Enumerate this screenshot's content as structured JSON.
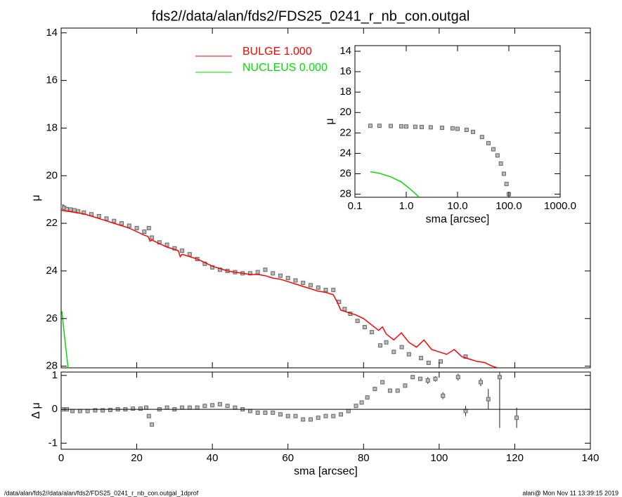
{
  "title": "fds2//data/alan/fds2/FDS25_0241_r_nb_con.outgal",
  "footer_left": "/data/alan/fds2//data/alan/fds2/FDS25_0241_r_nb_con.outgal_1dprof",
  "footer_right": "alan@  Mon Nov 11 13:39:15 2019",
  "chart_data": [
    {
      "type": "line",
      "ylabel": "μ",
      "xlim": [
        0,
        140
      ],
      "ylim": [
        28.07,
        13.8
      ],
      "yticks": [
        14,
        16,
        18,
        20,
        22,
        24,
        26,
        28
      ],
      "legend": "upper center",
      "series": [
        {
          "color": "#666666",
          "style": "points",
          "x": [
            0.3,
            0.8,
            1.5,
            2.5,
            3.5,
            4.5,
            6,
            8,
            10,
            12,
            14,
            16,
            18,
            20,
            22,
            23.2,
            24,
            26,
            28,
            30,
            32,
            34,
            36,
            38,
            40,
            42,
            44,
            46,
            48,
            50,
            52,
            54,
            56,
            58,
            60,
            62,
            64,
            66,
            68,
            70,
            72,
            73.5,
            75,
            76.5,
            78.4,
            80.3,
            82.2,
            84.4,
            86,
            88,
            90.1,
            92,
            95.2,
            97.2,
            100.4,
            107
          ],
          "values": [
            21.3,
            21.35,
            21.4,
            21.42,
            21.45,
            21.5,
            21.55,
            21.62,
            21.7,
            21.8,
            21.9,
            22.0,
            22.1,
            22.2,
            22.35,
            22.2,
            22.6,
            22.8,
            22.9,
            23.05,
            23.15,
            23.3,
            23.5,
            23.7,
            23.85,
            23.95,
            24.0,
            24.05,
            24.1,
            24.1,
            24.05,
            23.95,
            24.1,
            24.2,
            24.3,
            24.4,
            24.5,
            24.6,
            24.7,
            24.8,
            24.8,
            25.3,
            25.6,
            25.8,
            26.1,
            26.36,
            26.57,
            27.13,
            27.0,
            27.4,
            27.2,
            27.5,
            27.66,
            27.86,
            27.8,
            27.6
          ]
        },
        {
          "name": "BULGE  1.000",
          "color": "#ff0000",
          "style": "line",
          "x": [
            0,
            2,
            4,
            6,
            8,
            10,
            12,
            14,
            16,
            18,
            20,
            22,
            23,
            23.5,
            24,
            26,
            28,
            30,
            31,
            31.5,
            32,
            34,
            36,
            38,
            40,
            42,
            44,
            46,
            48,
            50,
            52,
            54,
            56,
            58,
            60,
            62,
            64,
            66,
            68,
            70,
            72,
            73,
            74,
            76,
            78,
            80,
            82,
            84,
            85,
            86,
            88,
            90,
            92,
            94,
            96,
            98,
            100,
            102,
            104,
            106,
            108,
            110,
            112,
            114,
            116
          ],
          "values": [
            21.45,
            21.5,
            21.55,
            21.6,
            21.7,
            21.8,
            21.9,
            22.0,
            22.1,
            22.2,
            22.35,
            22.5,
            22.55,
            22.75,
            22.7,
            22.85,
            23.0,
            23.1,
            23.15,
            23.4,
            23.3,
            23.4,
            23.5,
            23.65,
            23.8,
            23.9,
            24.0,
            24.05,
            24.1,
            24.15,
            24.15,
            24.2,
            24.3,
            24.35,
            24.45,
            24.55,
            24.65,
            24.75,
            24.85,
            24.9,
            25.0,
            25.3,
            25.65,
            25.75,
            25.85,
            26.0,
            26.25,
            26.5,
            26.35,
            26.65,
            26.9,
            26.6,
            27.0,
            27.2,
            26.9,
            27.3,
            27.4,
            27.5,
            27.3,
            27.6,
            27.7,
            27.8,
            27.85,
            28.0,
            28.1
          ]
        },
        {
          "name": "NUCLEUS  0.000",
          "color": "#00e000",
          "style": "line",
          "x": [
            0.2,
            0.6,
            1,
            1.5,
            2
          ],
          "values": [
            25.7,
            26.3,
            26.9,
            27.6,
            28.3
          ]
        }
      ]
    },
    {
      "type": "scatter",
      "xlabel": "sma [arcsec]",
      "ylabel": "Δ μ",
      "xlim": [
        0,
        140
      ],
      "ylim": [
        -1.18,
        1.1
      ],
      "xticks": [
        0,
        20,
        40,
        60,
        80,
        100,
        120,
        140
      ],
      "yticks": [
        -1,
        0,
        1
      ],
      "series": [
        {
          "color": "#666666",
          "style": "points",
          "x": [
            0.5,
            1.5,
            3,
            5,
            7,
            9,
            11,
            13,
            15,
            17,
            19,
            21,
            22.5,
            23.2,
            24,
            26,
            28,
            30,
            32,
            34,
            36,
            38,
            40,
            42,
            44,
            46,
            48,
            50,
            52,
            54,
            56,
            58,
            60,
            62,
            64,
            66,
            68,
            70,
            72,
            74,
            76,
            78,
            79.5,
            81,
            83,
            85,
            87,
            89,
            91,
            93,
            95,
            97,
            99,
            101,
            105,
            107,
            111,
            113,
            116,
            120.5
          ],
          "values": [
            0.0,
            0.0,
            -0.05,
            -0.05,
            -0.05,
            -0.03,
            -0.03,
            -0.02,
            0.0,
            0.0,
            0.02,
            0.02,
            0.05,
            -0.2,
            -0.45,
            0.0,
            0.05,
            0.0,
            0.05,
            0.05,
            0.05,
            0.1,
            0.12,
            0.15,
            0.1,
            0.05,
            0.0,
            -0.05,
            -0.1,
            -0.1,
            -0.1,
            -0.15,
            -0.2,
            -0.2,
            -0.3,
            -0.3,
            -0.25,
            -0.2,
            -0.2,
            -0.15,
            -0.05,
            0.1,
            0.2,
            0.35,
            0.6,
            0.8,
            0.55,
            0.55,
            0.7,
            0.95,
            0.9,
            0.85,
            0.9,
            0.4,
            0.95,
            -0.05,
            0.8,
            0.3,
            0.95,
            -0.25
          ],
          "errors": [
            0.02,
            0.02,
            0.02,
            0.02,
            0.02,
            0.02,
            0.02,
            0.02,
            0.02,
            0.02,
            0.02,
            0.02,
            0.02,
            0.05,
            0.05,
            0.02,
            0.02,
            0.02,
            0.02,
            0.02,
            0.02,
            0.02,
            0.02,
            0.02,
            0.02,
            0.02,
            0.02,
            0.02,
            0.02,
            0.02,
            0.02,
            0.02,
            0.02,
            0.02,
            0.02,
            0.02,
            0.02,
            0.02,
            0.02,
            0.02,
            0.03,
            0.03,
            0.04,
            0.04,
            0.05,
            0.05,
            0.06,
            0.06,
            0.06,
            0.06,
            0.05,
            0.1,
            0.08,
            0.1,
            0.1,
            0.15,
            0.12,
            0.3,
            1.5,
            0.3
          ]
        }
      ]
    },
    {
      "type": "line",
      "xlabel": "sma [arcsec]",
      "ylabel": "μ",
      "logx": true,
      "xlim": [
        0.1,
        1000
      ],
      "ylim": [
        28.3,
        13.45
      ],
      "xticks": [
        0.1,
        {
          "value": 1,
          "label": "1.0"
        },
        {
          "value": 10,
          "label": "10.0"
        },
        {
          "value": 100,
          "label": "100.0"
        },
        {
          "value": 1000,
          "label": "1000.0"
        }
      ],
      "yticks": [
        14,
        16,
        18,
        20,
        22,
        24,
        26,
        28
      ],
      "series": [
        {
          "color": "#666666",
          "style": "points",
          "x": [
            0.2,
            0.3,
            0.5,
            0.8,
            1,
            1.5,
            2,
            3,
            5,
            8,
            10,
            15,
            20,
            30,
            40,
            50,
            60,
            70,
            80,
            90,
            100
          ],
          "values": [
            21.3,
            21.3,
            21.32,
            21.35,
            21.37,
            21.4,
            21.42,
            21.45,
            21.5,
            21.55,
            21.6,
            21.7,
            21.9,
            22.4,
            23.0,
            23.6,
            24.2,
            25.0,
            26.0,
            27.0,
            28.0
          ]
        },
        {
          "color": "#00e000",
          "style": "line",
          "x": [
            0.2,
            0.3,
            0.5,
            0.8,
            1.2,
            1.8
          ],
          "values": [
            25.8,
            25.95,
            26.3,
            26.8,
            27.5,
            28.3
          ]
        }
      ]
    }
  ]
}
